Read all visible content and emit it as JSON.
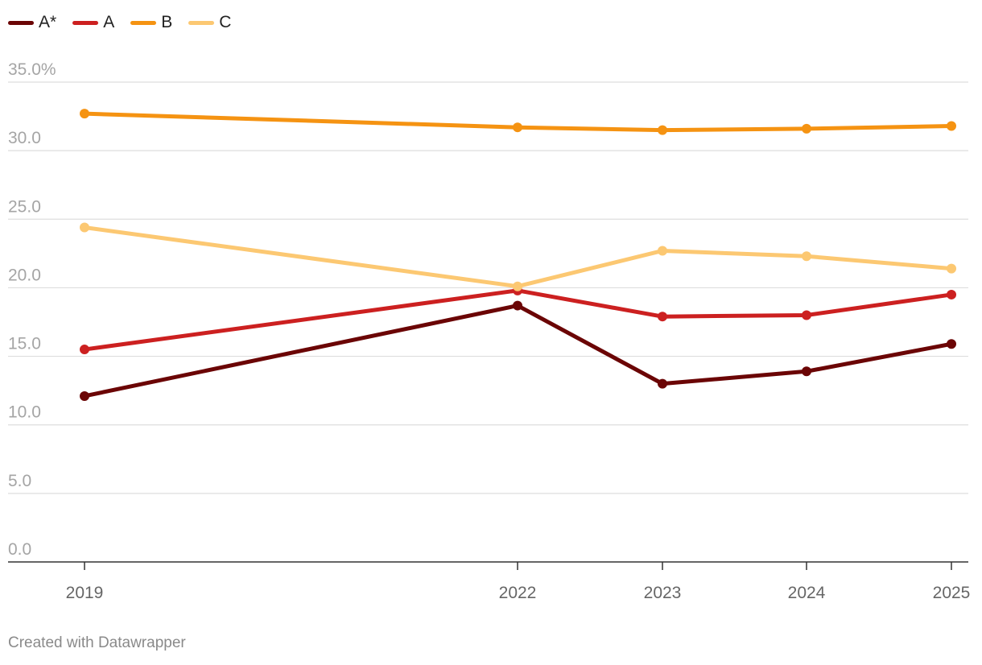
{
  "chart_data": {
    "type": "line",
    "title": "",
    "xlabel": "",
    "ylabel": "",
    "ylim": [
      0,
      35
    ],
    "yticks": [
      0,
      5,
      10,
      15,
      20,
      25,
      30,
      35
    ],
    "ytick_labels": [
      "0.0",
      "5.0",
      "10.0",
      "15.0",
      "20.0",
      "25.0",
      "30.0",
      "35.0%"
    ],
    "x": [
      2019,
      2022,
      2023,
      2024,
      2025
    ],
    "xtick_labels": [
      "2019",
      "2022",
      "2023",
      "2024",
      "2025"
    ],
    "legend_position": "top-left",
    "grid": true,
    "series": [
      {
        "name": "A*",
        "color": "#6b0505",
        "values": [
          12.1,
          18.7,
          13.0,
          13.9,
          15.9
        ]
      },
      {
        "name": "A",
        "color": "#cc2020",
        "values": [
          15.5,
          19.8,
          17.9,
          18.0,
          19.5
        ]
      },
      {
        "name": "B",
        "color": "#f59312",
        "values": [
          32.7,
          31.7,
          31.5,
          31.6,
          31.8
        ]
      },
      {
        "name": "C",
        "color": "#fcc872",
        "values": [
          24.4,
          20.1,
          22.7,
          22.3,
          21.4
        ]
      }
    ]
  },
  "footer": {
    "credit": "Created with Datawrapper"
  }
}
